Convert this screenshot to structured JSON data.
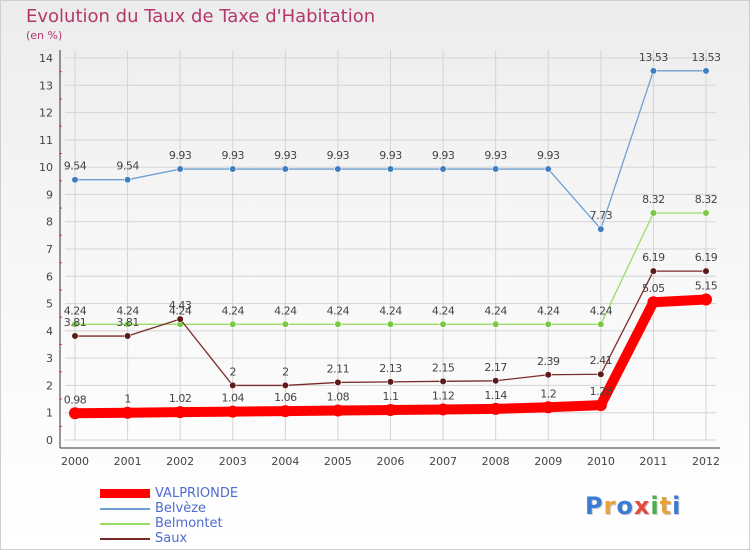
{
  "title": "Evolution du Taux de Taxe d'Habitation",
  "subtitle": "(en %)",
  "logo": {
    "text": "Proxiti",
    "colors": [
      "#3a7bd5",
      "#e8a23a",
      "#3a7bd5",
      "#e04b3a",
      "#4cae4c",
      "#e8a23a",
      "#3a7bd5"
    ]
  },
  "chart_data": {
    "type": "line",
    "title": "Evolution du Taux de Taxe d'Habitation",
    "ylabel": "(en %)",
    "xlabel": "",
    "x": [
      2000,
      2001,
      2002,
      2003,
      2004,
      2005,
      2006,
      2007,
      2008,
      2009,
      2010,
      2011,
      2012
    ],
    "ylim": [
      0,
      14
    ],
    "yticks": [
      0,
      1,
      2,
      3,
      4,
      5,
      6,
      7,
      8,
      9,
      10,
      11,
      12,
      13,
      14
    ],
    "grid": true,
    "legend_position": "bottom-left",
    "series": [
      {
        "name": "VALPRIONDE",
        "color": "#ff0000",
        "thick": true,
        "values": [
          0.98,
          1,
          1.02,
          1.04,
          1.06,
          1.08,
          1.1,
          1.12,
          1.14,
          1.2,
          1.28,
          5.05,
          5.15
        ],
        "labels": [
          "0.98",
          "1",
          "1.02",
          "1.04",
          "1.06",
          "1.08",
          "1.1",
          "1.12",
          "1.14",
          "1.2",
          "1.28",
          "5.05",
          "5.15"
        ]
      },
      {
        "name": "Belvèze",
        "color": "#6fa0d2",
        "marker": "#3f7fc0",
        "values": [
          9.54,
          9.54,
          9.93,
          9.93,
          9.93,
          9.93,
          9.93,
          9.93,
          9.93,
          9.93,
          7.73,
          13.53,
          13.53
        ],
        "labels": [
          "9.54",
          "9.54",
          "9.93",
          "9.93",
          "9.93",
          "9.93",
          "9.93",
          "9.93",
          "9.93",
          "9.93",
          "7.73",
          "13.53",
          "13.53"
        ]
      },
      {
        "name": "Belmontet",
        "color": "#99dd66",
        "marker": "#7ac943",
        "values": [
          4.24,
          4.24,
          4.24,
          4.24,
          4.24,
          4.24,
          4.24,
          4.24,
          4.24,
          4.24,
          4.24,
          8.32,
          8.32
        ],
        "labels": [
          "4.24",
          "4.24",
          "4.24",
          "4.24",
          "4.24",
          "4.24",
          "4.24",
          "4.24",
          "4.24",
          "4.24",
          "4.24",
          "8.32",
          "8.32"
        ]
      },
      {
        "name": "Saux",
        "color": "#7a2a2a",
        "marker": "#5c1a1a",
        "values": [
          3.81,
          3.81,
          4.43,
          2,
          2,
          2.11,
          2.13,
          2.15,
          2.17,
          2.39,
          2.41,
          6.19,
          6.19
        ],
        "labels": [
          "3.81",
          "3.81",
          "4.43",
          "2",
          "2",
          "2.11",
          "2.13",
          "2.15",
          "2.17",
          "2.39",
          "2.41",
          "6.19",
          "6.19"
        ]
      }
    ]
  }
}
